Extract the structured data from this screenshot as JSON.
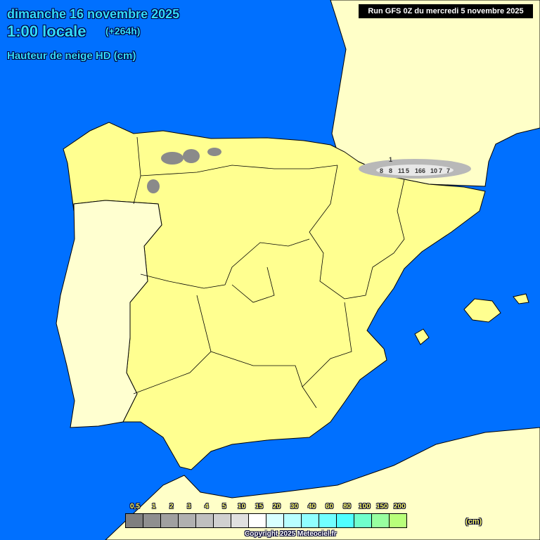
{
  "header": {
    "date": "dimanche 16 novembre 2025",
    "time": "1:00 locale",
    "offset": "(+264h)",
    "parameter": "Hauteur de neige HD (cm)"
  },
  "run": "Run GFS 0Z du mercredi 5 novembre 2025",
  "legend": {
    "ticks": [
      "0,5",
      "1",
      "2",
      "3",
      "4",
      "5",
      "10",
      "15",
      "20",
      "30",
      "40",
      "60",
      "80",
      "100",
      "150",
      "200"
    ],
    "colors": [
      "#7f7f7f",
      "#8f8f8f",
      "#a0a0a0",
      "#b0b0b0",
      "#bfbfbf",
      "#d0d0d0",
      "#e0e0e0",
      "#ffffff",
      "#d8ffff",
      "#b8ffff",
      "#90ffff",
      "#70ffff",
      "#50ffff",
      "#70ffcc",
      "#98ffa0",
      "#b8ff7a"
    ],
    "unit": "(cm)"
  },
  "copyright": "Copyright 2025 Meteociel.fr",
  "snow_labels": [
    "1",
    "8",
    "8",
    "11",
    "5",
    "16",
    "6",
    "10",
    "7",
    "7"
  ],
  "colors": {
    "sea": "#0070ff",
    "spain": "#ffff90",
    "portugal": "#ffffd0",
    "france": "#ffffc8"
  }
}
